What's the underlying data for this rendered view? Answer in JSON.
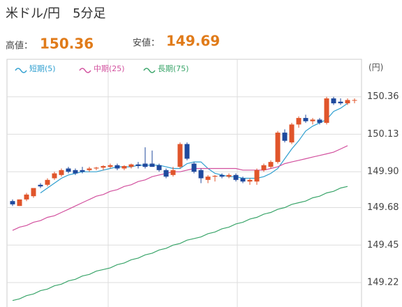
{
  "header": {
    "title": "米ドル/円　5分足",
    "high_label": "高値：",
    "high_value": 150.36,
    "low_label": "安値：",
    "low_value": 149.69
  },
  "chart_data": {
    "type": "candlestick",
    "y_label": "(円)",
    "ylim": [
      149.07,
      150.59
    ],
    "yticks": [
      150.36,
      150.13,
      {
        "value": 149.9,
        "label": "149.90"
      },
      149.68,
      149.45,
      149.22
    ],
    "grid": true,
    "up_color": "#e0552b",
    "down_color": "#1f4a9e",
    "open": [
      149.72,
      149.69,
      149.73,
      149.75,
      149.82,
      149.82,
      149.86,
      149.88,
      149.92,
      149.91,
      149.91,
      149.91,
      149.92,
      149.925,
      149.93,
      149.94,
      149.92,
      149.93,
      149.945,
      149.95,
      149.95,
      149.94,
      149.91,
      149.88,
      149.93,
      150.07,
      149.95,
      149.91,
      149.85,
      149.87,
      149.88,
      149.87,
      149.88,
      149.86,
      149.84,
      149.84,
      149.91,
      149.93,
      149.96,
      150.14,
      150.08,
      150.19,
      150.23,
      150.21,
      150.22,
      150.2,
      150.35,
      150.33,
      150.32,
      150.34
    ],
    "high": [
      149.73,
      149.73,
      149.77,
      149.8,
      149.83,
      149.86,
      149.9,
      149.92,
      149.93,
      149.92,
      149.93,
      149.93,
      149.93,
      149.94,
      149.95,
      149.95,
      149.94,
      149.95,
      149.96,
      150.05,
      150.03,
      149.95,
      149.92,
      149.93,
      150.08,
      150.08,
      149.96,
      149.92,
      149.88,
      149.88,
      149.89,
      149.89,
      149.89,
      149.87,
      149.86,
      149.92,
      149.95,
      149.97,
      150.15,
      150.16,
      150.2,
      150.24,
      150.25,
      150.23,
      150.23,
      150.36,
      150.36,
      150.35,
      150.35,
      150.35
    ],
    "low": [
      149.69,
      149.69,
      149.72,
      149.74,
      149.8,
      149.81,
      149.85,
      149.87,
      149.89,
      149.88,
      149.89,
      149.9,
      149.91,
      149.91,
      149.92,
      149.91,
      149.91,
      149.92,
      149.92,
      149.92,
      149.93,
      149.9,
      149.86,
      149.87,
      149.92,
      149.97,
      149.89,
      149.83,
      149.83,
      149.84,
      149.86,
      149.86,
      149.84,
      149.83,
      149.82,
      149.82,
      149.9,
      149.92,
      149.95,
      150.08,
      150.07,
      150.17,
      150.2,
      150.19,
      150.19,
      150.19,
      150.31,
      150.31,
      150.31,
      150.32
    ],
    "close": [
      149.7,
      149.73,
      149.76,
      149.8,
      149.81,
      149.85,
      149.89,
      149.91,
      149.9,
      149.89,
      149.9,
      149.92,
      149.925,
      149.935,
      149.94,
      149.92,
      149.935,
      149.945,
      149.935,
      149.93,
      149.93,
      149.91,
      149.87,
      149.91,
      150.07,
      149.98,
      149.9,
      149.86,
      149.87,
      149.875,
      149.87,
      149.88,
      149.85,
      149.84,
      149.85,
      149.91,
      149.94,
      149.96,
      150.14,
      150.09,
      150.19,
      150.23,
      150.21,
      150.22,
      150.2,
      150.35,
      150.32,
      150.32,
      150.34,
      150.34
    ],
    "series": [
      {
        "name": "短期(5)",
        "color": "#2f9fd0",
        "values": [
          null,
          null,
          null,
          null,
          149.77,
          149.8,
          149.83,
          149.86,
          149.88,
          149.89,
          149.9,
          149.9,
          149.9,
          149.91,
          149.92,
          149.93,
          149.93,
          149.93,
          149.94,
          149.94,
          149.94,
          149.94,
          149.93,
          149.92,
          149.92,
          149.95,
          149.96,
          149.96,
          149.92,
          149.89,
          149.88,
          149.87,
          149.87,
          149.86,
          149.86,
          149.86,
          149.87,
          149.89,
          149.92,
          149.98,
          150.04,
          150.09,
          150.15,
          150.18,
          150.2,
          150.22,
          150.27,
          150.29,
          150.32,
          null
        ]
      },
      {
        "name": "中期(25)",
        "color": "#d2509e",
        "values": [
          149.54,
          149.56,
          149.57,
          149.59,
          149.6,
          149.62,
          149.63,
          149.65,
          149.67,
          149.69,
          149.71,
          149.73,
          149.75,
          149.76,
          149.78,
          149.79,
          149.81,
          149.82,
          149.84,
          149.85,
          149.87,
          149.88,
          149.89,
          149.9,
          149.9,
          149.91,
          149.92,
          149.92,
          149.92,
          149.92,
          149.92,
          149.92,
          149.92,
          149.91,
          149.91,
          149.91,
          149.91,
          149.92,
          149.93,
          149.95,
          149.96,
          149.97,
          149.98,
          149.99,
          150.0,
          150.01,
          150.02,
          150.04,
          150.06,
          null
        ]
      },
      {
        "name": "長期(75)",
        "color": "#3aa56a",
        "values": [
          149.11,
          149.12,
          149.14,
          149.15,
          149.17,
          149.18,
          149.2,
          149.21,
          149.23,
          149.24,
          149.26,
          149.27,
          149.29,
          149.3,
          149.31,
          149.33,
          149.34,
          149.36,
          149.37,
          149.39,
          149.4,
          149.42,
          149.43,
          149.45,
          149.46,
          149.48,
          149.49,
          149.5,
          149.52,
          149.53,
          149.55,
          149.56,
          149.58,
          149.59,
          149.61,
          149.62,
          149.64,
          149.65,
          149.67,
          149.68,
          149.7,
          149.71,
          149.72,
          149.74,
          149.75,
          149.77,
          149.78,
          149.8,
          149.81,
          null
        ]
      }
    ]
  }
}
